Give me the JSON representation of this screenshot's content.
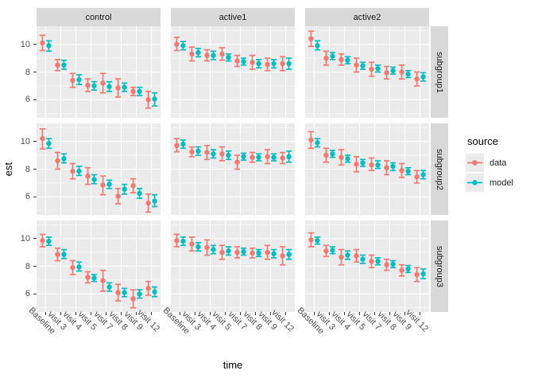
{
  "chart_data": {
    "type": "pointrange-facets",
    "title": "",
    "xlabel": "time",
    "ylabel": "est",
    "x_categories": [
      "Baseline",
      "visit 3",
      "visit 4",
      "visit 5",
      "visit 7",
      "visit 8",
      "visit 9",
      "visit 12"
    ],
    "facet_cols": [
      "control",
      "active1",
      "active2"
    ],
    "facet_rows": [
      "subgroup1",
      "subgroup2",
      "subgroup3"
    ],
    "ylim": [
      4.7,
      11.3
    ],
    "y_ticks": [
      10,
      8,
      6
    ],
    "y_minor_gridlines": [
      5,
      7,
      9,
      11
    ],
    "grid": "on",
    "colors": {
      "panel_background": "#ebebeb",
      "strip_background": "#d9d9d9",
      "gridline": "#ffffff",
      "axis_text": "#4d4d4d",
      "data_series": "#F8766D",
      "model_series": "#00BFC4"
    },
    "legend": {
      "title": "source",
      "position": "right",
      "items": [
        {
          "label": "data",
          "color": "#F8766D"
        },
        {
          "label": "model",
          "color": "#00BFC4"
        }
      ]
    },
    "panels": [
      {
        "row": "subgroup1",
        "col": "control",
        "data": {
          "est": [
            10.1,
            8.5,
            7.4,
            7.05,
            7.2,
            6.85,
            6.6,
            6.0
          ],
          "lo": [
            9.55,
            8.1,
            6.9,
            6.6,
            6.5,
            6.2,
            6.3,
            5.4
          ],
          "hi": [
            10.65,
            8.9,
            7.9,
            7.5,
            7.9,
            7.5,
            6.9,
            6.6
          ]
        },
        "model": {
          "est": [
            9.9,
            8.5,
            7.45,
            7.0,
            6.95,
            6.9,
            6.6,
            6.05
          ],
          "lo": [
            9.5,
            8.2,
            7.1,
            6.7,
            6.6,
            6.6,
            6.3,
            5.55
          ],
          "hi": [
            10.25,
            8.85,
            7.8,
            7.3,
            7.3,
            7.2,
            6.9,
            6.5
          ]
        }
      },
      {
        "row": "subgroup1",
        "col": "active1",
        "data": {
          "est": [
            10.0,
            9.3,
            9.2,
            9.3,
            8.8,
            8.7,
            8.55,
            8.6
          ],
          "lo": [
            9.55,
            8.8,
            8.8,
            8.85,
            8.4,
            8.2,
            8.1,
            8.1
          ],
          "hi": [
            10.5,
            9.8,
            9.6,
            9.75,
            9.2,
            9.2,
            9.0,
            9.1
          ]
        },
        "model": {
          "est": [
            9.9,
            9.4,
            9.2,
            9.05,
            8.75,
            8.6,
            8.6,
            8.6
          ],
          "lo": [
            9.6,
            9.1,
            8.9,
            8.8,
            8.5,
            8.3,
            8.3,
            8.2
          ],
          "hi": [
            10.2,
            9.7,
            9.5,
            9.3,
            9.0,
            8.9,
            8.9,
            9.0
          ]
        }
      },
      {
        "row": "subgroup1",
        "col": "active2",
        "data": {
          "est": [
            10.4,
            9.0,
            8.9,
            8.5,
            8.2,
            7.95,
            8.0,
            7.5
          ],
          "lo": [
            9.85,
            8.5,
            8.5,
            8.0,
            7.7,
            7.5,
            7.5,
            7.0
          ],
          "hi": [
            10.95,
            9.5,
            9.3,
            9.0,
            8.7,
            8.4,
            8.5,
            8.0
          ]
        },
        "model": {
          "est": [
            9.9,
            9.15,
            8.85,
            8.45,
            8.25,
            8.1,
            7.85,
            7.65
          ],
          "lo": [
            9.6,
            8.9,
            8.6,
            8.2,
            8.0,
            7.85,
            7.6,
            7.35
          ],
          "hi": [
            10.25,
            9.4,
            9.1,
            8.7,
            8.5,
            8.35,
            8.1,
            7.95
          ]
        }
      },
      {
        "row": "subgroup2",
        "col": "control",
        "data": {
          "est": [
            10.2,
            8.6,
            7.85,
            7.5,
            6.85,
            6.05,
            6.8,
            5.55
          ],
          "lo": [
            9.45,
            8.0,
            7.3,
            6.9,
            6.15,
            5.5,
            6.3,
            4.9
          ],
          "hi": [
            10.9,
            9.2,
            8.4,
            8.1,
            7.5,
            6.6,
            7.3,
            6.2
          ]
        },
        "model": {
          "est": [
            9.85,
            8.75,
            7.85,
            7.25,
            6.9,
            6.55,
            6.25,
            5.7
          ],
          "lo": [
            9.5,
            8.45,
            7.55,
            6.95,
            6.6,
            6.2,
            5.9,
            5.3
          ],
          "hi": [
            10.2,
            9.1,
            8.2,
            7.6,
            7.2,
            6.9,
            6.6,
            6.15
          ]
        }
      },
      {
        "row": "subgroup2",
        "col": "active1",
        "data": {
          "est": [
            9.7,
            9.25,
            9.2,
            9.1,
            8.5,
            8.85,
            8.9,
            8.8
          ],
          "lo": [
            9.25,
            8.9,
            8.7,
            8.6,
            8.0,
            8.5,
            8.4,
            8.4
          ],
          "hi": [
            10.2,
            9.6,
            9.7,
            9.6,
            9.0,
            9.2,
            9.4,
            9.2
          ]
        },
        "model": {
          "est": [
            9.8,
            9.3,
            9.1,
            9.0,
            8.9,
            8.85,
            8.85,
            8.9
          ],
          "lo": [
            9.5,
            9.0,
            8.8,
            8.7,
            8.65,
            8.6,
            8.6,
            8.5
          ],
          "hi": [
            10.1,
            9.6,
            9.4,
            9.3,
            9.15,
            9.1,
            9.1,
            9.3
          ]
        }
      },
      {
        "row": "subgroup2",
        "col": "active2",
        "data": {
          "est": [
            10.1,
            9.0,
            8.85,
            8.35,
            8.3,
            8.1,
            7.9,
            7.45
          ],
          "lo": [
            9.5,
            8.5,
            8.3,
            7.8,
            7.9,
            7.6,
            7.4,
            7.0
          ],
          "hi": [
            10.7,
            9.5,
            9.4,
            8.9,
            8.8,
            8.6,
            8.4,
            7.9
          ]
        },
        "model": {
          "est": [
            9.9,
            9.1,
            8.75,
            8.45,
            8.3,
            8.2,
            7.85,
            7.6
          ],
          "lo": [
            9.6,
            8.85,
            8.5,
            8.2,
            8.05,
            7.9,
            7.6,
            7.3
          ],
          "hi": [
            10.2,
            9.35,
            9.0,
            8.7,
            8.6,
            8.45,
            8.1,
            7.9
          ]
        }
      },
      {
        "row": "subgroup3",
        "col": "control",
        "data": {
          "est": [
            9.85,
            8.85,
            7.9,
            7.2,
            6.95,
            6.1,
            5.65,
            6.4
          ],
          "lo": [
            9.4,
            8.4,
            7.4,
            6.8,
            6.2,
            5.5,
            5.0,
            5.9
          ],
          "hi": [
            10.3,
            9.3,
            8.4,
            7.6,
            7.7,
            6.7,
            6.3,
            6.9
          ]
        },
        "model": {
          "est": [
            9.8,
            8.85,
            7.95,
            7.15,
            6.5,
            6.1,
            6.0,
            6.15
          ],
          "lo": [
            9.5,
            8.55,
            7.65,
            6.9,
            6.2,
            5.8,
            5.7,
            5.8
          ],
          "hi": [
            10.1,
            9.2,
            8.3,
            7.4,
            6.8,
            6.4,
            6.3,
            6.5
          ]
        }
      },
      {
        "row": "subgroup3",
        "col": "active1",
        "data": {
          "est": [
            9.85,
            9.6,
            9.35,
            9.0,
            9.0,
            8.95,
            9.0,
            8.75
          ],
          "lo": [
            9.4,
            9.1,
            8.8,
            8.5,
            8.6,
            8.6,
            8.5,
            8.1
          ],
          "hi": [
            10.3,
            10.1,
            9.9,
            9.5,
            9.4,
            9.3,
            9.5,
            9.4
          ]
        },
        "model": {
          "est": [
            9.8,
            9.4,
            9.2,
            9.1,
            9.05,
            8.95,
            8.9,
            8.85
          ],
          "lo": [
            9.5,
            9.1,
            8.9,
            8.8,
            8.8,
            8.7,
            8.6,
            8.5
          ],
          "hi": [
            10.1,
            9.7,
            9.5,
            9.4,
            9.3,
            9.2,
            9.2,
            9.2
          ]
        }
      },
      {
        "row": "subgroup3",
        "col": "active2",
        "data": {
          "est": [
            9.9,
            9.1,
            8.65,
            8.75,
            8.35,
            8.1,
            7.7,
            7.4
          ],
          "lo": [
            9.4,
            8.7,
            8.1,
            8.3,
            7.9,
            7.7,
            7.3,
            6.9
          ],
          "hi": [
            10.4,
            9.5,
            9.2,
            9.2,
            8.8,
            8.5,
            8.1,
            7.9
          ]
        },
        "model": {
          "est": [
            9.85,
            9.15,
            8.8,
            8.5,
            8.35,
            8.15,
            7.8,
            7.45
          ],
          "lo": [
            9.6,
            8.9,
            8.5,
            8.2,
            8.1,
            7.9,
            7.55,
            7.1
          ],
          "hi": [
            10.1,
            9.4,
            9.1,
            8.8,
            8.6,
            8.4,
            8.05,
            7.8
          ]
        }
      }
    ]
  }
}
